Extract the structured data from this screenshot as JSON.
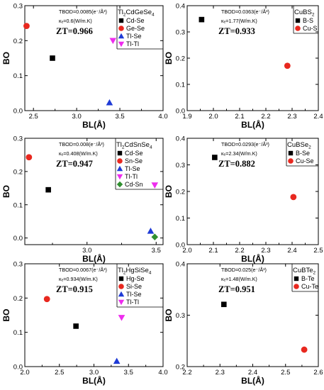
{
  "chart_data": [
    {
      "type": "scatter",
      "title": "Tl2CdGeSe4",
      "title_base": "Tl",
      "title_sub1": "2",
      "title_mid": "CdGeSe",
      "title_sub2": "4",
      "xlabel": "BL(Å)",
      "ylabel": "BO",
      "xlim": [
        2.4,
        4.0
      ],
      "ylim": [
        0.0,
        0.3
      ],
      "xticks": [
        "2.5",
        "3.0",
        "3.5",
        "4.0"
      ],
      "yticks": [
        "0.0",
        "0.1",
        "0.2",
        "0.3"
      ],
      "annotations": [
        "TBOD=0.0085(e⁻/Å³)",
        "κₑ=0.6(W/m.K)",
        "ZT=0.966"
      ],
      "legend_position": "top-right",
      "series": [
        {
          "name": "Cd-Se",
          "marker": "square",
          "color": "#000000",
          "x": [
            2.72
          ],
          "y": [
            0.15
          ]
        },
        {
          "name": "Ge-Se",
          "marker": "circle",
          "color": "#e8281f",
          "x": [
            2.42
          ],
          "y": [
            0.242
          ]
        },
        {
          "name": "Tl-Se",
          "marker": "triangle-up",
          "color": "#1f3bd6",
          "x": [
            3.38
          ],
          "y": [
            0.023
          ]
        },
        {
          "name": "Tl-Tl",
          "marker": "triangle-down",
          "color": "#ee2cee",
          "x": [
            3.42
          ],
          "y": [
            0.2
          ]
        }
      ]
    },
    {
      "type": "scatter",
      "title": "CuBS2",
      "title_base": "CuBS",
      "title_sub1": "2",
      "title_mid": "",
      "title_sub2": "",
      "xlabel": "BL(Å)",
      "ylabel": "BO",
      "xlim": [
        1.9,
        2.4
      ],
      "ylim": [
        0.0,
        0.4
      ],
      "xticks": [
        "1.9",
        "2.0",
        "2.1",
        "2.2",
        "2.3",
        "2.4"
      ],
      "yticks": [
        "0.0",
        "0.1",
        "0.2",
        "0.3",
        "0.4"
      ],
      "annotations": [
        "TBOD=0.0363(e⁻/Å³)",
        "κₑ=1.77(W/m.K)",
        "ZT=0.933"
      ],
      "legend_position": "top-right",
      "series": [
        {
          "name": "B-S",
          "marker": "square",
          "color": "#000000",
          "x": [
            1.955
          ],
          "y": [
            0.347
          ]
        },
        {
          "name": "Cu-S",
          "marker": "circle",
          "color": "#e8281f",
          "x": [
            2.282
          ],
          "y": [
            0.171
          ]
        }
      ]
    },
    {
      "type": "scatter",
      "title": "Tl2CdSnSe4",
      "title_base": "Tl",
      "title_sub1": "2",
      "title_mid": "CdSnSe",
      "title_sub2": "4",
      "xlabel": "BL(Å)",
      "ylabel": "BO",
      "xlim": [
        2.55,
        3.55
      ],
      "ylim": [
        -0.02,
        0.3
      ],
      "xticks": [
        "2.5",
        "3.0",
        "3.5"
      ],
      "yticks": [
        "0.0",
        "0.1",
        "0.2",
        "0.3"
      ],
      "annotations": [
        "TBOD=0.008(e⁻/Å³)",
        "κₑ=0.408(W/m.K)",
        "ZT=0.947"
      ],
      "legend_position": "top-right",
      "series": [
        {
          "name": "Cd-Se",
          "marker": "square",
          "color": "#000000",
          "x": [
            2.72
          ],
          "y": [
            0.145
          ]
        },
        {
          "name": "Sn-Se",
          "marker": "circle",
          "color": "#e8281f",
          "x": [
            2.58
          ],
          "y": [
            0.243
          ]
        },
        {
          "name": "Tl-Se",
          "marker": "triangle-up",
          "color": "#1f3bd6",
          "x": [
            3.46
          ],
          "y": [
            0.021
          ]
        },
        {
          "name": "Tl-Tl",
          "marker": "triangle-down",
          "color": "#ee2cee",
          "x": [
            3.49
          ],
          "y": [
            0.159
          ]
        },
        {
          "name": "Cd-Sn",
          "marker": "diamond",
          "color": "#2f8f2f",
          "x": [
            3.49
          ],
          "y": [
            0.003
          ]
        }
      ]
    },
    {
      "type": "scatter",
      "title": "CuBSe2",
      "title_base": "CuBSe",
      "title_sub1": "2",
      "title_mid": "",
      "title_sub2": "",
      "xlabel": "BL(Å)",
      "ylabel": "BO",
      "xlim": [
        2.0,
        2.5
      ],
      "ylim": [
        0.0,
        0.4
      ],
      "xticks": [
        "2.0",
        "2.1",
        "2.2",
        "2.3",
        "2.4",
        "2.5"
      ],
      "yticks": [
        "0.0",
        "0.1",
        "0.2",
        "0.3",
        "0.4"
      ],
      "annotations": [
        "TBOD=0.0293(e⁻/Å³)",
        "κₑ=2.34(W/m.K)",
        "ZT=0.882"
      ],
      "legend_position": "top-right",
      "series": [
        {
          "name": "B-Se",
          "marker": "square",
          "color": "#000000",
          "x": [
            2.105
          ],
          "y": [
            0.328
          ]
        },
        {
          "name": "Cu-Se",
          "marker": "circle",
          "color": "#e8281f",
          "x": [
            2.405
          ],
          "y": [
            0.179
          ]
        }
      ]
    },
    {
      "type": "scatter",
      "title": "Tl2HgSiSe4",
      "title_base": "Tl",
      "title_sub1": "2",
      "title_mid": "HgSiSe",
      "title_sub2": "4",
      "xlabel": "BL(Å)",
      "ylabel": "BO",
      "xlim": [
        2.0,
        4.0
      ],
      "ylim": [
        0.0,
        0.3
      ],
      "xticks": [
        "2.0",
        "2.5",
        "3.0",
        "3.5",
        "4.0"
      ],
      "yticks": [
        "0.0",
        "0.1",
        "0.2",
        "0.3"
      ],
      "annotations": [
        "TBOD=0.0067(e⁻/Å³)",
        "κₑ=0.934(W/m.K)",
        "ZT=0.915"
      ],
      "legend_position": "top-right",
      "series": [
        {
          "name": "Hg-Se",
          "marker": "square",
          "color": "#000000",
          "x": [
            2.74
          ],
          "y": [
            0.118
          ]
        },
        {
          "name": "Si-Se",
          "marker": "circle",
          "color": "#e8281f",
          "x": [
            2.32
          ],
          "y": [
            0.197
          ]
        },
        {
          "name": "Tl-Se",
          "marker": "triangle-up",
          "color": "#1f3bd6",
          "x": [
            3.33
          ],
          "y": [
            0.016
          ]
        },
        {
          "name": "Tl-Tl",
          "marker": "triangle-down",
          "color": "#ee2cee",
          "x": [
            3.4
          ],
          "y": [
            0.143
          ]
        }
      ]
    },
    {
      "type": "scatter",
      "title": "CuBTe2",
      "title_base": "CuBTe",
      "title_sub1": "2",
      "title_mid": "",
      "title_sub2": "",
      "xlabel": "BL(Å)",
      "ylabel": "BO",
      "xlim": [
        2.2,
        2.6
      ],
      "ylim": [
        0.2,
        0.4
      ],
      "xticks": [
        "2.2",
        "2.3",
        "2.4",
        "2.5",
        "2.6"
      ],
      "yticks": [
        "0.2",
        "0.3",
        "0.4"
      ],
      "annotations": [
        "TBOD=0.025(e⁻/Å³)",
        "κₑ=1.48(W/m.K)",
        "ZT=0.951"
      ],
      "legend_position": "top-right",
      "series": [
        {
          "name": "B-Te",
          "marker": "square",
          "color": "#000000",
          "x": [
            2.312
          ],
          "y": [
            0.321
          ]
        },
        {
          "name": "Cu-Te",
          "marker": "circle",
          "color": "#e8281f",
          "x": [
            2.557
          ],
          "y": [
            0.233
          ]
        }
      ]
    }
  ]
}
